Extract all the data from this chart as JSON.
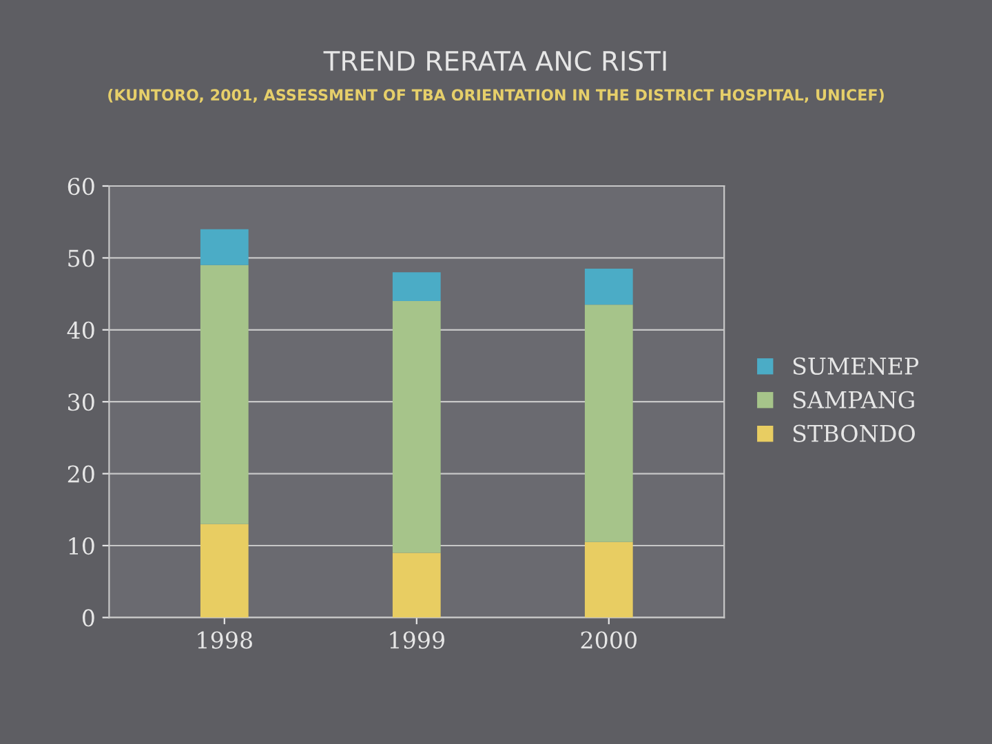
{
  "chart_data": {
    "type": "bar",
    "stacked": true,
    "title": "TREND RERATA ANC RISTI",
    "subtitle": "(KUNTORO, 2001, ASSESSMENT OF TBA ORIENTATION IN THE DISTRICT HOSPITAL, UNICEF)",
    "categories": [
      "1998",
      "1999",
      "2000"
    ],
    "series": [
      {
        "name": "STBONDO",
        "color": "#e8cd62",
        "values": [
          13,
          9,
          10.5
        ]
      },
      {
        "name": "SAMPANG",
        "color": "#a6c48a",
        "values": [
          36,
          35,
          33
        ]
      },
      {
        "name": "SUMENEP",
        "color": "#4bacc6",
        "values": [
          5,
          4,
          5
        ]
      }
    ],
    "ylim": [
      0,
      60
    ],
    "yticks": [
      0,
      10,
      20,
      30,
      40,
      50,
      60
    ],
    "grid": "y",
    "legend": "right"
  }
}
